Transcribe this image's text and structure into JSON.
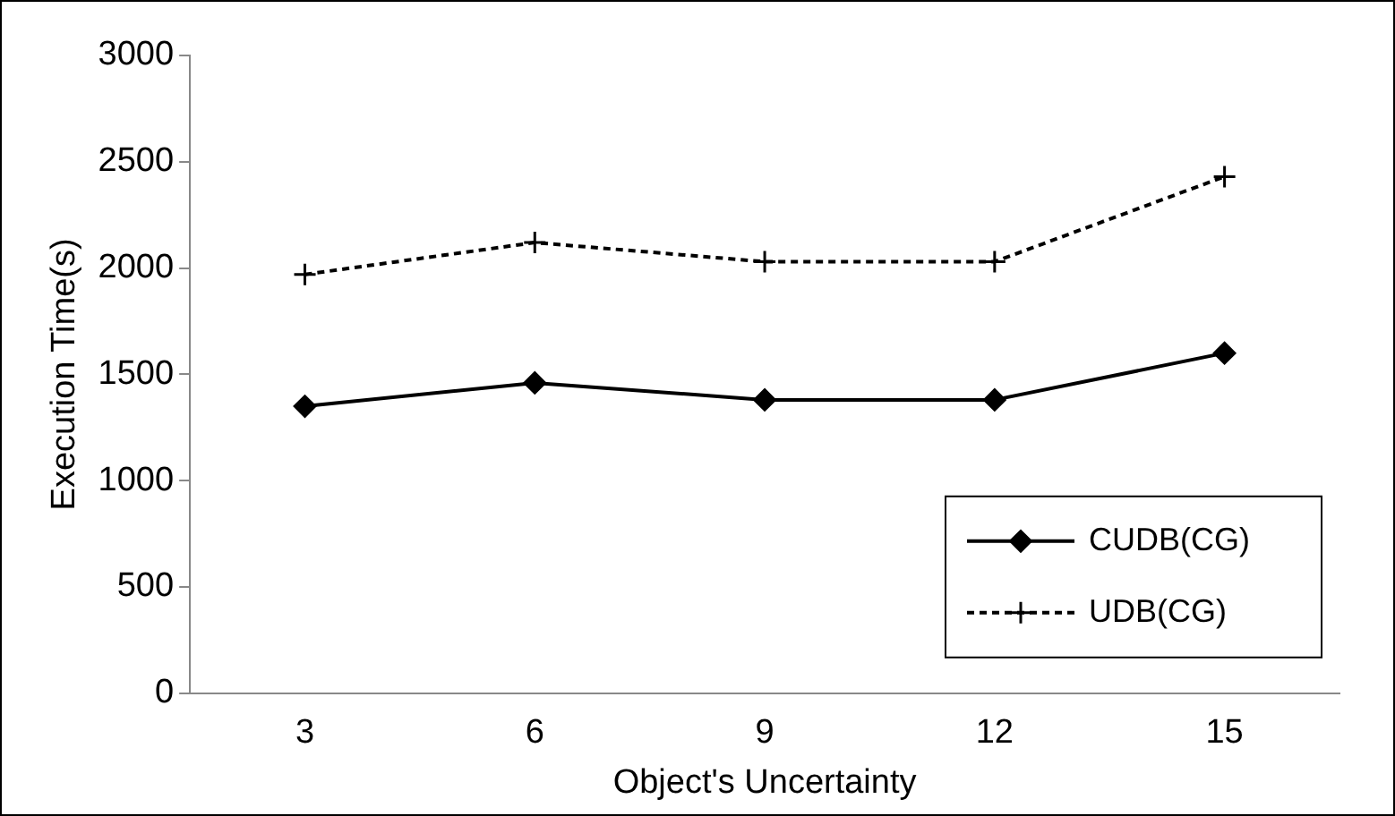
{
  "chart_data": {
    "type": "line",
    "xlabel": "Object's Uncertainty",
    "ylabel": "Execution Time(s)",
    "categories": [
      "3",
      "6",
      "9",
      "12",
      "15"
    ],
    "ylim": [
      0,
      3000
    ],
    "yticks": [
      0,
      500,
      1000,
      1500,
      2000,
      2500,
      3000
    ],
    "grid": false,
    "legend": "bottom right",
    "series": [
      {
        "name": "CUDB(CG)",
        "color": "#000000",
        "values": [
          1350,
          1460,
          1380,
          1380,
          1600
        ],
        "marker": "diamond",
        "line_style": "solid"
      },
      {
        "name": "UDB(CG)",
        "color": "#000000",
        "values": [
          1970,
          2120,
          2030,
          2030,
          2430
        ],
        "marker": "cross",
        "line_style": "dashed"
      }
    ]
  }
}
